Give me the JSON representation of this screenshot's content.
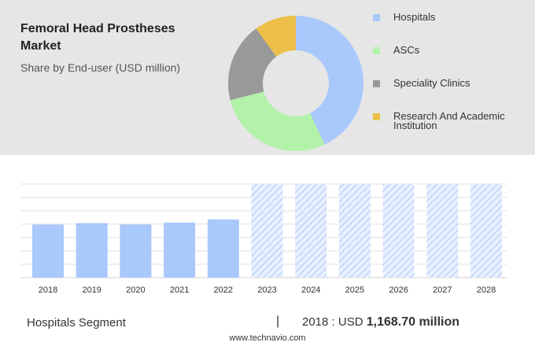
{
  "header": {
    "title": "Femoral Head Prostheses Market",
    "subtitle": "Share by End-user (USD million)"
  },
  "colors": {
    "hospitals": "#a9c8fb",
    "ascs": "#b2f2a9",
    "speciality": "#999999",
    "research": "#ecbf48",
    "bar": "#a9c8fb",
    "forecast_hatch": "#bcd3fb",
    "panel": "#e6e6e6"
  },
  "chart_data": [
    {
      "type": "pie",
      "variant": "donut",
      "title": "Share by End-user (USD million)",
      "slices": [
        {
          "name": "Hospitals",
          "share": 0.43
        },
        {
          "name": "ASCs",
          "share": 0.28
        },
        {
          "name": "Speciality Clinics",
          "share": 0.19
        },
        {
          "name": "Research And Academic Institution",
          "share": 0.1
        }
      ],
      "legend": {
        "position": "right",
        "items": [
          {
            "label": "Hospitals",
            "color": "#a9c8fb"
          },
          {
            "label": "ASCs",
            "color": "#b2f2a9"
          },
          {
            "label": "Speciality Clinics",
            "color": "#999999"
          },
          {
            "label": "Research And Academic Institution",
            "color": "#ecbf48"
          }
        ]
      }
    },
    {
      "type": "bar",
      "series_name": "Hospitals Segment",
      "categories": [
        "2018",
        "2019",
        "2020",
        "2021",
        "2022",
        "2023",
        "2024",
        "2025",
        "2026",
        "2027",
        "2028"
      ],
      "values": [
        1168.7,
        1200,
        1170,
        1210,
        1280,
        null,
        null,
        null,
        null,
        null,
        null
      ],
      "forecast_categories": [
        "2023",
        "2024",
        "2025",
        "2026",
        "2027",
        "2028"
      ],
      "forecast_fill": "hatched",
      "ylim": [
        0,
        2200
      ],
      "grid": true
    }
  ],
  "summary": {
    "segment_label": "Hospitals Segment",
    "divider": "|",
    "year_prefix": "2018 : USD",
    "value": "1,168.70 million"
  },
  "footer": {
    "site": "www.technavio.com"
  }
}
